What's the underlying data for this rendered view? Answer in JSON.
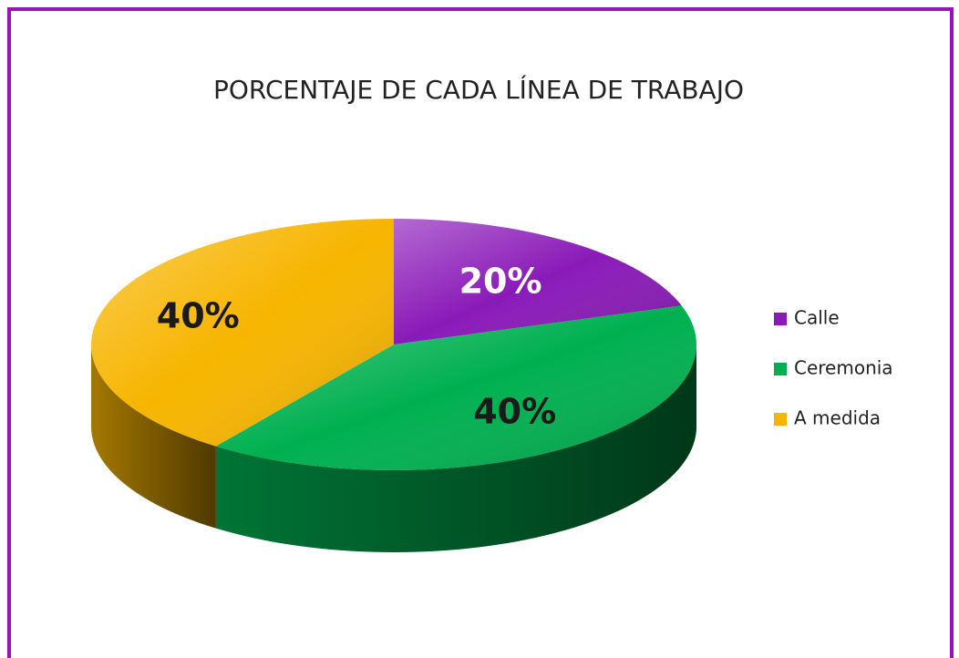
{
  "chart_data": {
    "type": "pie",
    "title": "PORCENTAJE DE CADA LÍNEA DE TRABAJO",
    "categories": [
      "Calle",
      "Ceremonia",
      "A medida"
    ],
    "values": [
      20,
      40,
      40
    ],
    "value_labels": [
      "20%",
      "40%",
      "40%"
    ],
    "colors": [
      "#8a1ab8",
      "#00b050",
      "#f7b500"
    ],
    "legend": "right"
  }
}
